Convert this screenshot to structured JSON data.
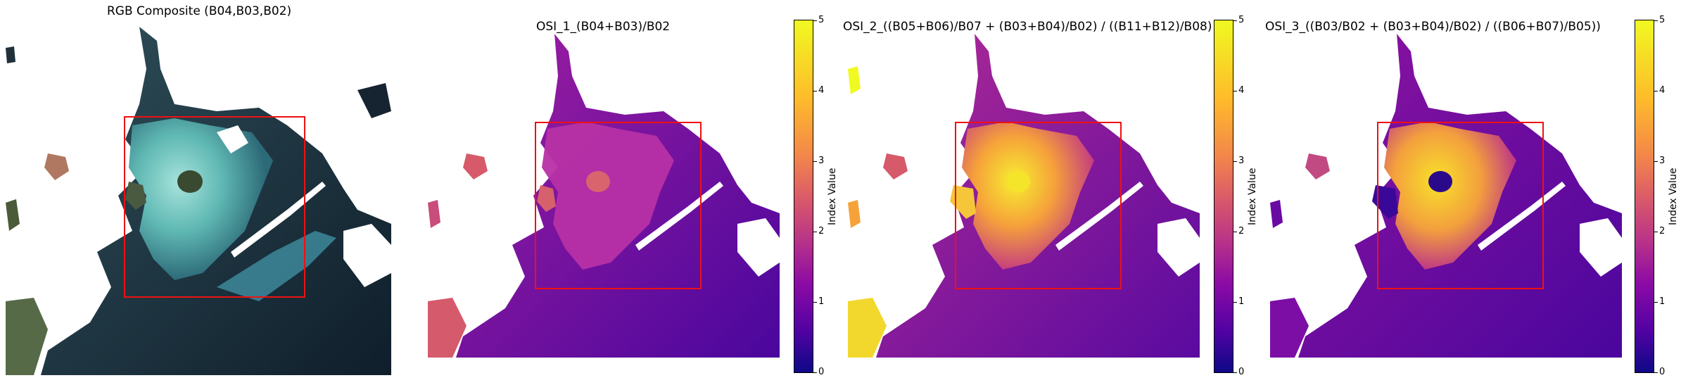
{
  "panels": [
    {
      "title": "RGB Composite (B04,B03,B02)"
    },
    {
      "title": "OSI_1_(B04+B03)/B02"
    },
    {
      "title": "OSI_2_((B05+B06)/B07 + (B03+B04)/B02) / ((B11+B12)/B08)"
    },
    {
      "title": "OSI_3_((B03/B02 + (B03+B04)/B02) / ((B06+B07)/B05))"
    }
  ],
  "colorbar": {
    "label": "Index Value",
    "ticks": [
      "0",
      "1",
      "2",
      "3",
      "4",
      "5"
    ],
    "colormap": "plasma",
    "range": [
      0,
      5
    ]
  },
  "colors": {
    "roi_box": "#ee1111",
    "rgb_water": "#1f3a4a",
    "rgb_bloom": "#69c5c0",
    "index_low": "#3d0599",
    "index_mid": "#a21da3",
    "index_high": "#f7e225"
  }
}
